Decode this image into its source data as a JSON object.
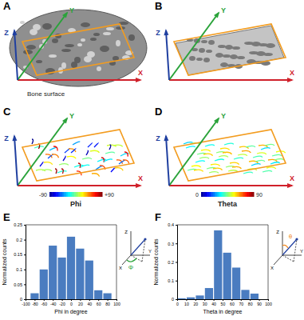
{
  "panels": [
    {
      "panel": "A",
      "axes": [
        "X",
        "Y",
        "Z"
      ],
      "annotation": "Bone surface"
    },
    {
      "panel": "B",
      "axes": [
        "X",
        "Y",
        "Z"
      ]
    },
    {
      "panel": "C",
      "axes": [
        "X",
        "Y",
        "Z"
      ],
      "colorbar": {
        "title": "Phi",
        "range": [
          -90,
          90
        ],
        "ticks": [
          -90,
          {
            "value": 90,
            "label": "+90"
          }
        ]
      }
    },
    {
      "panel": "D",
      "axes": [
        "X",
        "Y",
        "Z"
      ],
      "colorbar": {
        "title": "Theta",
        "range": [
          0,
          90
        ],
        "ticks": [
          0,
          90
        ]
      }
    }
  ],
  "chart_data": [
    {
      "type": "histogram",
      "title": "E",
      "xlabel": "Phi in degree",
      "ylabel": "Normalized counts",
      "bins": [
        -90,
        -70,
        -50,
        -30,
        -10,
        10,
        30,
        50,
        70,
        90
      ],
      "values": [
        0.02,
        0.1,
        0.18,
        0.14,
        0.21,
        0.17,
        0.13,
        0.03,
        0.02
      ],
      "color": "#4a7cc0",
      "xlim": [
        -100,
        100
      ],
      "xticks": [
        -100,
        -80,
        -60,
        -40,
        -20,
        0,
        20,
        40,
        60,
        80,
        100
      ],
      "ylim": [
        0,
        0.25
      ],
      "yticks": [
        0,
        0.05,
        0.1,
        0.15,
        0.2,
        0.25
      ],
      "inset": {
        "axes": [
          "X",
          "Y",
          "Z"
        ],
        "angle": "Φ"
      }
    },
    {
      "type": "histogram",
      "title": "F",
      "xlabel": "Theta in degree",
      "ylabel": "Normalized counts",
      "bins": [
        0,
        10,
        20,
        30,
        40,
        50,
        60,
        70,
        80,
        90
      ],
      "values": [
        0.005,
        0.01,
        0.02,
        0.06,
        0.37,
        0.25,
        0.17,
        0.05,
        0.03
      ],
      "color": "#4a7cc0",
      "xlim": [
        0,
        100
      ],
      "xticks": [
        0,
        10,
        20,
        30,
        40,
        50,
        60,
        70,
        80,
        90,
        100
      ],
      "ylim": [
        0,
        0.4
      ],
      "yticks": [
        0,
        0.1,
        0.2,
        0.3,
        0.4
      ],
      "inset": {
        "axes": [
          "X",
          "Y",
          "Z"
        ],
        "angle": "θ"
      }
    }
  ]
}
